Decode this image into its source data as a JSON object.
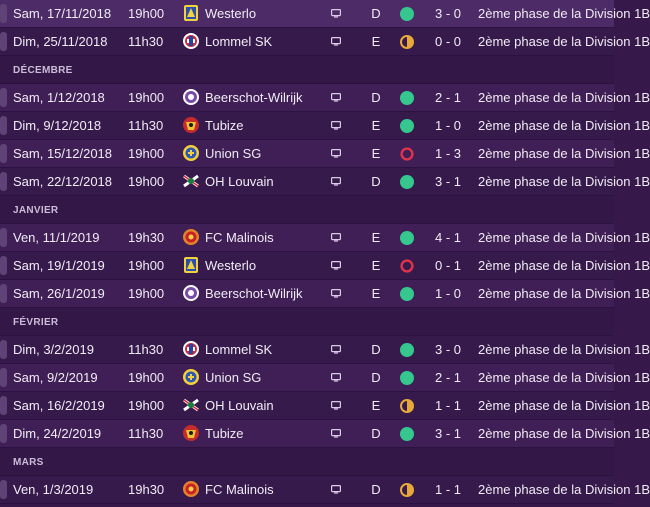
{
  "colors": {
    "win": "#35c78d",
    "draw": "#e8a93a",
    "loss": "#e0334c"
  },
  "sections": [
    {
      "month": "",
      "rows": [
        {
          "date": "Sam, 17/11/2018",
          "time": "19h00",
          "team": "Westerlo",
          "crest": "westerlo-crest-icon",
          "tv": "tv-icon",
          "venue": "D",
          "result": "win",
          "score": "3 - 0",
          "competition": "2ème phase de la Division 1B"
        },
        {
          "date": "Dim, 25/11/2018",
          "time": "11h30",
          "team": "Lommel SK",
          "crest": "lommel-crest-icon",
          "tv": "tv-icon",
          "venue": "E",
          "result": "draw",
          "score": "0 - 0",
          "competition": "2ème phase de la Division 1B"
        }
      ]
    },
    {
      "month": "DÉCEMBRE",
      "rows": [
        {
          "date": "Sam, 1/12/2018",
          "time": "19h00",
          "team": "Beerschot-Wilrijk",
          "crest": "beerschot-crest-icon",
          "tv": "tv-icon",
          "venue": "D",
          "result": "win",
          "score": "2 - 1",
          "competition": "2ème phase de la Division 1B"
        },
        {
          "date": "Dim, 9/12/2018",
          "time": "11h30",
          "team": "Tubize",
          "crest": "tubize-crest-icon",
          "tv": "tv-icon",
          "venue": "E",
          "result": "win",
          "score": "1 - 0",
          "competition": "2ème phase de la Division 1B"
        },
        {
          "date": "Sam, 15/12/2018",
          "time": "19h00",
          "team": "Union SG",
          "crest": "union-crest-icon",
          "tv": "tv-icon",
          "venue": "E",
          "result": "loss",
          "score": "1 - 3",
          "competition": "2ème phase de la Division 1B"
        },
        {
          "date": "Sam, 22/12/2018",
          "time": "19h00",
          "team": "OH Louvain",
          "crest": "ohl-crest-icon",
          "tv": "tv-icon",
          "venue": "D",
          "result": "win",
          "score": "3 - 1",
          "competition": "2ème phase de la Division 1B"
        }
      ]
    },
    {
      "month": "JANVIER",
      "rows": [
        {
          "date": "Ven, 11/1/2019",
          "time": "19h30",
          "team": "FC Malinois",
          "crest": "malinois-crest-icon",
          "tv": "tv-icon",
          "venue": "E",
          "result": "win",
          "score": "4 - 1",
          "competition": "2ème phase de la Division 1B"
        },
        {
          "date": "Sam, 19/1/2019",
          "time": "19h00",
          "team": "Westerlo",
          "crest": "westerlo-crest-icon",
          "tv": "tv-icon",
          "venue": "E",
          "result": "loss",
          "score": "0 - 1",
          "competition": "2ème phase de la Division 1B"
        },
        {
          "date": "Sam, 26/1/2019",
          "time": "19h00",
          "team": "Beerschot-Wilrijk",
          "crest": "beerschot-crest-icon",
          "tv": "tv-icon",
          "venue": "E",
          "result": "win",
          "score": "1 - 0",
          "competition": "2ème phase de la Division 1B"
        }
      ]
    },
    {
      "month": "FÉVRIER",
      "rows": [
        {
          "date": "Dim, 3/2/2019",
          "time": "11h30",
          "team": "Lommel SK",
          "crest": "lommel-crest-icon",
          "tv": "tv-icon",
          "venue": "D",
          "result": "win",
          "score": "3 - 0",
          "competition": "2ème phase de la Division 1B"
        },
        {
          "date": "Sam, 9/2/2019",
          "time": "19h00",
          "team": "Union SG",
          "crest": "union-crest-icon",
          "tv": "tv-icon",
          "venue": "D",
          "result": "win",
          "score": "2 - 1",
          "competition": "2ème phase de la Division 1B"
        },
        {
          "date": "Sam, 16/2/2019",
          "time": "19h00",
          "team": "OH Louvain",
          "crest": "ohl-crest-icon",
          "tv": "tv-icon",
          "venue": "E",
          "result": "draw",
          "score": "1 - 1",
          "competition": "2ème phase de la Division 1B"
        },
        {
          "date": "Dim, 24/2/2019",
          "time": "11h30",
          "team": "Tubize",
          "crest": "tubize-crest-icon",
          "tv": "tv-icon",
          "venue": "D",
          "result": "win",
          "score": "3 - 1",
          "competition": "2ème phase de la Division 1B"
        }
      ]
    },
    {
      "month": "MARS",
      "rows": [
        {
          "date": "Ven, 1/3/2019",
          "time": "19h30",
          "team": "FC Malinois",
          "crest": "malinois-crest-icon",
          "tv": "tv-icon",
          "venue": "D",
          "result": "draw",
          "score": "1 - 1",
          "competition": "2ème phase de la Division 1B"
        }
      ]
    }
  ]
}
